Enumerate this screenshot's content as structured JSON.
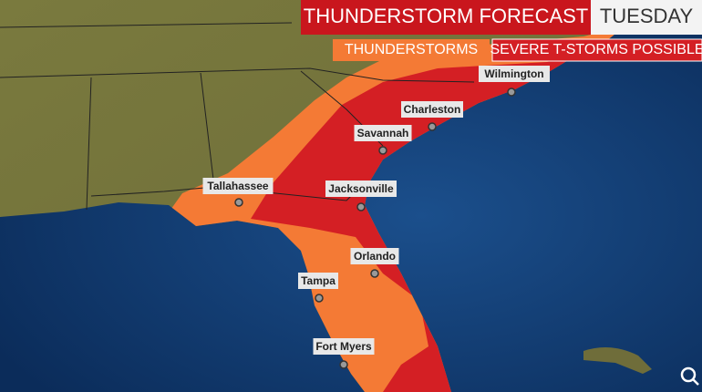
{
  "header": {
    "title": "THUNDERSTORM FORECAST",
    "day": "TUESDAY"
  },
  "legend": [
    {
      "label": "THUNDERSTORMS",
      "color": "#f47a35"
    },
    {
      "label": "SEVERE T-STORMS POSSIBLE",
      "color": "#d41f24"
    }
  ],
  "cities": [
    "Wilmington",
    "Charleston",
    "Savannah",
    "Tallahassee",
    "Jacksonville",
    "Orlando",
    "Tampa",
    "Fort Myers"
  ]
}
